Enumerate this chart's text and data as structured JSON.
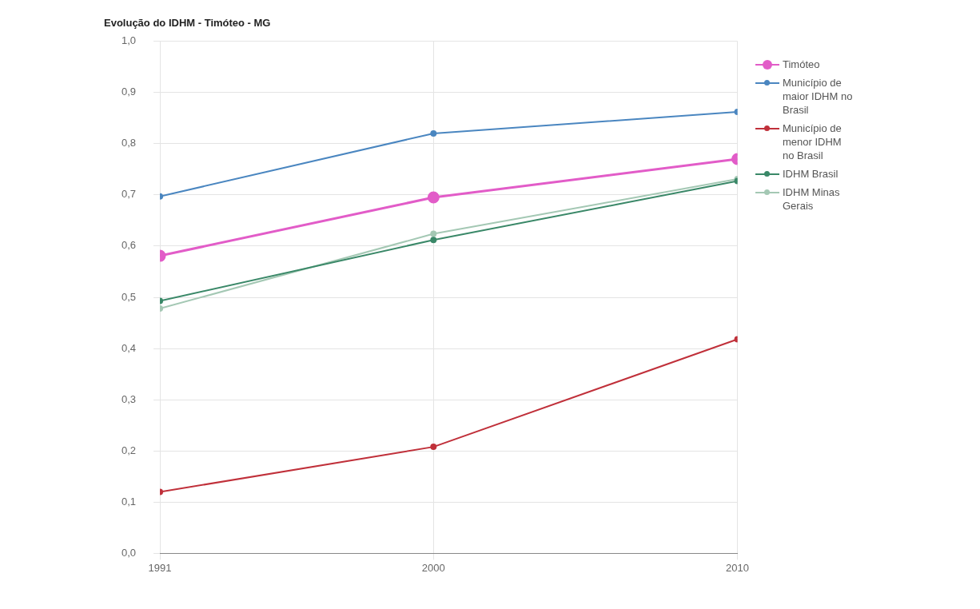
{
  "chart_data": {
    "type": "line",
    "title": "Evolução do IDHM - Timóteo - MG",
    "x": [
      1991,
      2000,
      2010
    ],
    "xlim": [
      1991,
      2010
    ],
    "xticks": [
      1991,
      2000,
      2010
    ],
    "ylim": [
      0,
      1
    ],
    "yticks": [
      {
        "value": 0,
        "label": "0,0"
      },
      {
        "value": 0.1,
        "label": "0,1"
      },
      {
        "value": 0.2,
        "label": "0,2"
      },
      {
        "value": 0.3,
        "label": "0,3"
      },
      {
        "value": 0.4,
        "label": "0,4"
      },
      {
        "value": 0.5,
        "label": "0,5"
      },
      {
        "value": 0.6,
        "label": "0,6"
      },
      {
        "value": 0.7,
        "label": "0,7"
      },
      {
        "value": 0.8,
        "label": "0,8"
      },
      {
        "value": 0.9,
        "label": "0,9"
      },
      {
        "value": 1,
        "label": "1,0"
      }
    ],
    "series": [
      {
        "name": "Timóteo",
        "color": "#e25cc8",
        "values": [
          0.581,
          0.695,
          0.77
        ]
      },
      {
        "name": "Município de maior IDHM no Brasil",
        "color": "#4a86c0",
        "values": [
          0.697,
          0.82,
          0.862
        ]
      },
      {
        "name": "Município de menor IDHM no Brasil",
        "color": "#c0303a",
        "values": [
          0.12,
          0.208,
          0.418
        ]
      },
      {
        "name": "IDHM Brasil",
        "color": "#3a8868",
        "values": [
          0.493,
          0.612,
          0.727
        ]
      },
      {
        "name": "IDHM Minas Gerais",
        "color": "#a4c8b4",
        "values": [
          0.478,
          0.624,
          0.731
        ]
      }
    ],
    "grid": true,
    "legend": "right",
    "marker": "circle"
  }
}
